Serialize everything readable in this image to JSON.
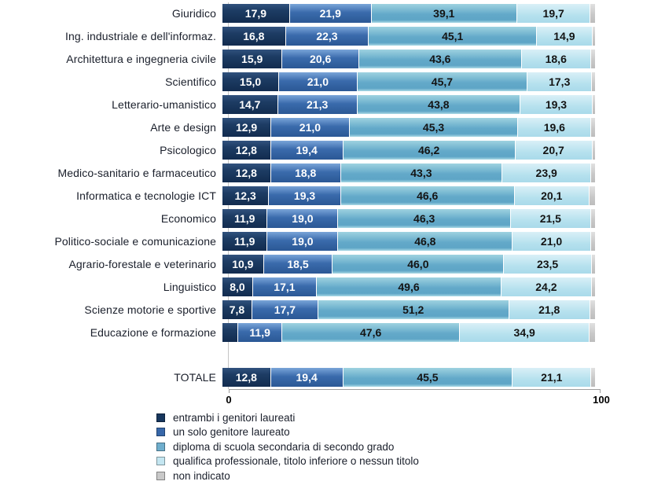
{
  "chart_data": {
    "type": "bar",
    "orientation": "horizontal",
    "stacked": true,
    "unit": "percent",
    "decimal_separator": ",",
    "value_labels": {
      "show": true,
      "min_value_for_label": 6
    },
    "x_axis": {
      "min": 0,
      "max": 100,
      "tick_labels": [
        "0",
        "100"
      ],
      "grid": false
    },
    "legend_position": "bottom-left",
    "categories": [
      {
        "label": "Giuridico"
      },
      {
        "label": "Ing. industriale e dell'informaz."
      },
      {
        "label": "Architettura e ingegneria civile"
      },
      {
        "label": "Scientifico"
      },
      {
        "label": "Letterario-umanistico"
      },
      {
        "label": "Arte e design"
      },
      {
        "label": "Psicologico"
      },
      {
        "label": "Medico-sanitario e farmaceutico"
      },
      {
        "label": "Informatica e tecnologie ICT"
      },
      {
        "label": "Economico"
      },
      {
        "label": "Politico-sociale e comunicazione"
      },
      {
        "label": "Agrario-forestale e veterinario"
      },
      {
        "label": "Linguistico"
      },
      {
        "label": "Scienze motorie e sportive"
      },
      {
        "label": "Educazione e formazione"
      },
      {
        "label": "TOTALE",
        "gap_before": true
      }
    ],
    "series": [
      {
        "name": "entrambi i genitori laureati",
        "color": "#17365d",
        "values": [
          17.9,
          16.8,
          15.9,
          15.0,
          14.7,
          12.9,
          12.8,
          12.8,
          12.3,
          11.9,
          11.9,
          10.9,
          8.0,
          7.8,
          4.0,
          12.8
        ]
      },
      {
        "name": "un solo genitore laureato",
        "color": "#3767a9",
        "values": [
          21.9,
          22.3,
          20.6,
          21.0,
          21.3,
          21.0,
          19.4,
          18.8,
          19.3,
          19.0,
          19.0,
          18.5,
          17.1,
          17.7,
          11.9,
          19.4
        ]
      },
      {
        "name": "diploma di scuola secondaria di secondo grado",
        "color": "#6faecd",
        "values": [
          39.1,
          45.1,
          43.6,
          45.7,
          43.8,
          45.3,
          46.2,
          43.3,
          46.6,
          46.3,
          46.8,
          46.0,
          49.6,
          51.2,
          47.6,
          45.5
        ]
      },
      {
        "name": "qualifica professionale, titolo inferiore o nessun titolo",
        "color": "#c4e6f1",
        "values": [
          19.7,
          14.9,
          18.6,
          17.3,
          19.3,
          19.6,
          20.7,
          23.9,
          20.1,
          21.5,
          21.0,
          23.5,
          24.2,
          21.8,
          34.9,
          21.1
        ]
      },
      {
        "name": "non indicato",
        "color": "#c9c9c9",
        "values": [
          1.4,
          0.9,
          1.3,
          1.0,
          0.9,
          1.2,
          0.9,
          1.2,
          1.7,
          1.3,
          1.3,
          1.1,
          1.1,
          1.5,
          1.6,
          1.2
        ]
      }
    ]
  }
}
